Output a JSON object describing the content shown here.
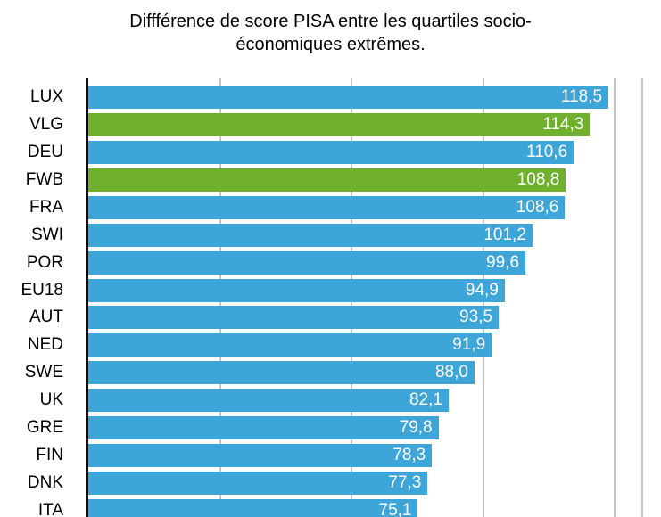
{
  "title": {
    "line1": "Diffférence de score PISA entre les quartiles socio-",
    "line2": "économiques extrêmes."
  },
  "colors": {
    "bar_default": "#3ea5d9",
    "bar_highlight": "#6fb02f",
    "gridline": "#c4c4c4",
    "axis": "#0a0a0a",
    "value_label_text": "#ffffff",
    "category_label_text": "#000000",
    "background": "#ffffff"
  },
  "chart_data": {
    "type": "bar",
    "orientation": "horizontal",
    "title": "Diffférence de score PISA entre les quartiles socio-économiques extrêmes.",
    "xlabel": "",
    "ylabel": "",
    "categories": [
      "LUX",
      "VLG",
      "DEU",
      "FWB",
      "FRA",
      "SWI",
      "POR",
      "EU18",
      "AUT",
      "NED",
      "SWE",
      "UK",
      "GRE",
      "FIN",
      "DNK",
      "ITA"
    ],
    "values": [
      118.5,
      114.3,
      110.6,
      108.8,
      108.6,
      101.2,
      99.6,
      94.9,
      93.5,
      91.9,
      88.0,
      82.1,
      79.8,
      78.3,
      77.3,
      75.1
    ],
    "value_labels": [
      "118,5",
      "114,3",
      "110,6",
      "108,8",
      "108,6",
      "101,2",
      "99,6",
      "94,9",
      "93,5",
      "91,9",
      "88,0",
      "82,1",
      "79,8",
      "78,3",
      "77,3",
      "75,1"
    ],
    "highlighted_categories": [
      "VLG",
      "FWB"
    ],
    "decimal_separator": ",",
    "xlim": [
      0,
      126
    ],
    "gridlines_x": [
      30,
      60,
      90,
      120
    ],
    "grid": true,
    "legend": false,
    "x_tick_labels_visible": false,
    "bottom_clipped": true
  }
}
